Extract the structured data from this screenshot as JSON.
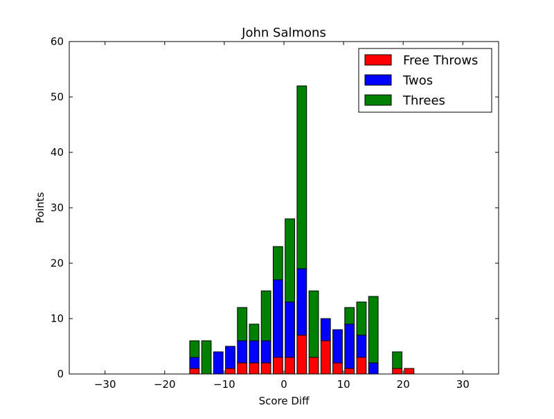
{
  "chart_data": {
    "type": "bar",
    "stacked": true,
    "title": "John Salmons",
    "xlabel": "Score Diff",
    "ylabel": "Points",
    "xlim": [
      -36,
      36
    ],
    "ylim": [
      0,
      60
    ],
    "xticks": [
      -30,
      -20,
      -10,
      0,
      10,
      20,
      30
    ],
    "yticks": [
      0,
      10,
      20,
      30,
      40,
      50,
      60
    ],
    "xtick_labels": [
      "−30",
      "−20",
      "−10",
      "0",
      "10",
      "20",
      "30"
    ],
    "ytick_labels": [
      "0",
      "10",
      "20",
      "30",
      "40",
      "50",
      "60"
    ],
    "bar_width": 1.6,
    "grid": false,
    "legend_position": "top-right",
    "x": [
      -35,
      -33,
      -31,
      -29,
      -27,
      -25,
      -23,
      -21,
      -19,
      -17,
      -15,
      -13,
      -11,
      -9,
      -7,
      -5,
      -3,
      -1,
      1,
      3,
      5,
      7,
      9,
      11,
      13,
      15,
      17,
      19,
      21,
      23,
      25,
      27,
      29,
      31,
      33,
      35
    ],
    "series": [
      {
        "name": "Free Throws",
        "color": "#ff0000",
        "values": [
          0,
          0,
          0,
          0,
          0,
          0,
          0,
          0,
          0,
          0,
          1,
          0,
          0,
          1,
          2,
          2,
          2,
          3,
          3,
          7,
          3,
          6,
          2,
          1,
          3,
          0,
          0,
          1,
          1,
          0,
          0,
          0,
          0,
          0,
          0,
          0
        ]
      },
      {
        "name": "Twos",
        "color": "#0000ff",
        "values": [
          0,
          0,
          0,
          0,
          0,
          0,
          0,
          0,
          0,
          0,
          2,
          0,
          4,
          4,
          4,
          4,
          4,
          14,
          10,
          12,
          0,
          4,
          6,
          8,
          4,
          2,
          0,
          0,
          0,
          0,
          0,
          0,
          0,
          0,
          0,
          0
        ]
      },
      {
        "name": "Threes",
        "color": "#008000",
        "values": [
          0,
          0,
          0,
          0,
          0,
          0,
          0,
          0,
          0,
          0,
          3,
          6,
          0,
          0,
          6,
          3,
          9,
          6,
          15,
          33,
          12,
          0,
          0,
          3,
          6,
          12,
          0,
          3,
          0,
          0,
          0,
          0,
          0,
          0,
          0,
          0
        ]
      }
    ]
  }
}
